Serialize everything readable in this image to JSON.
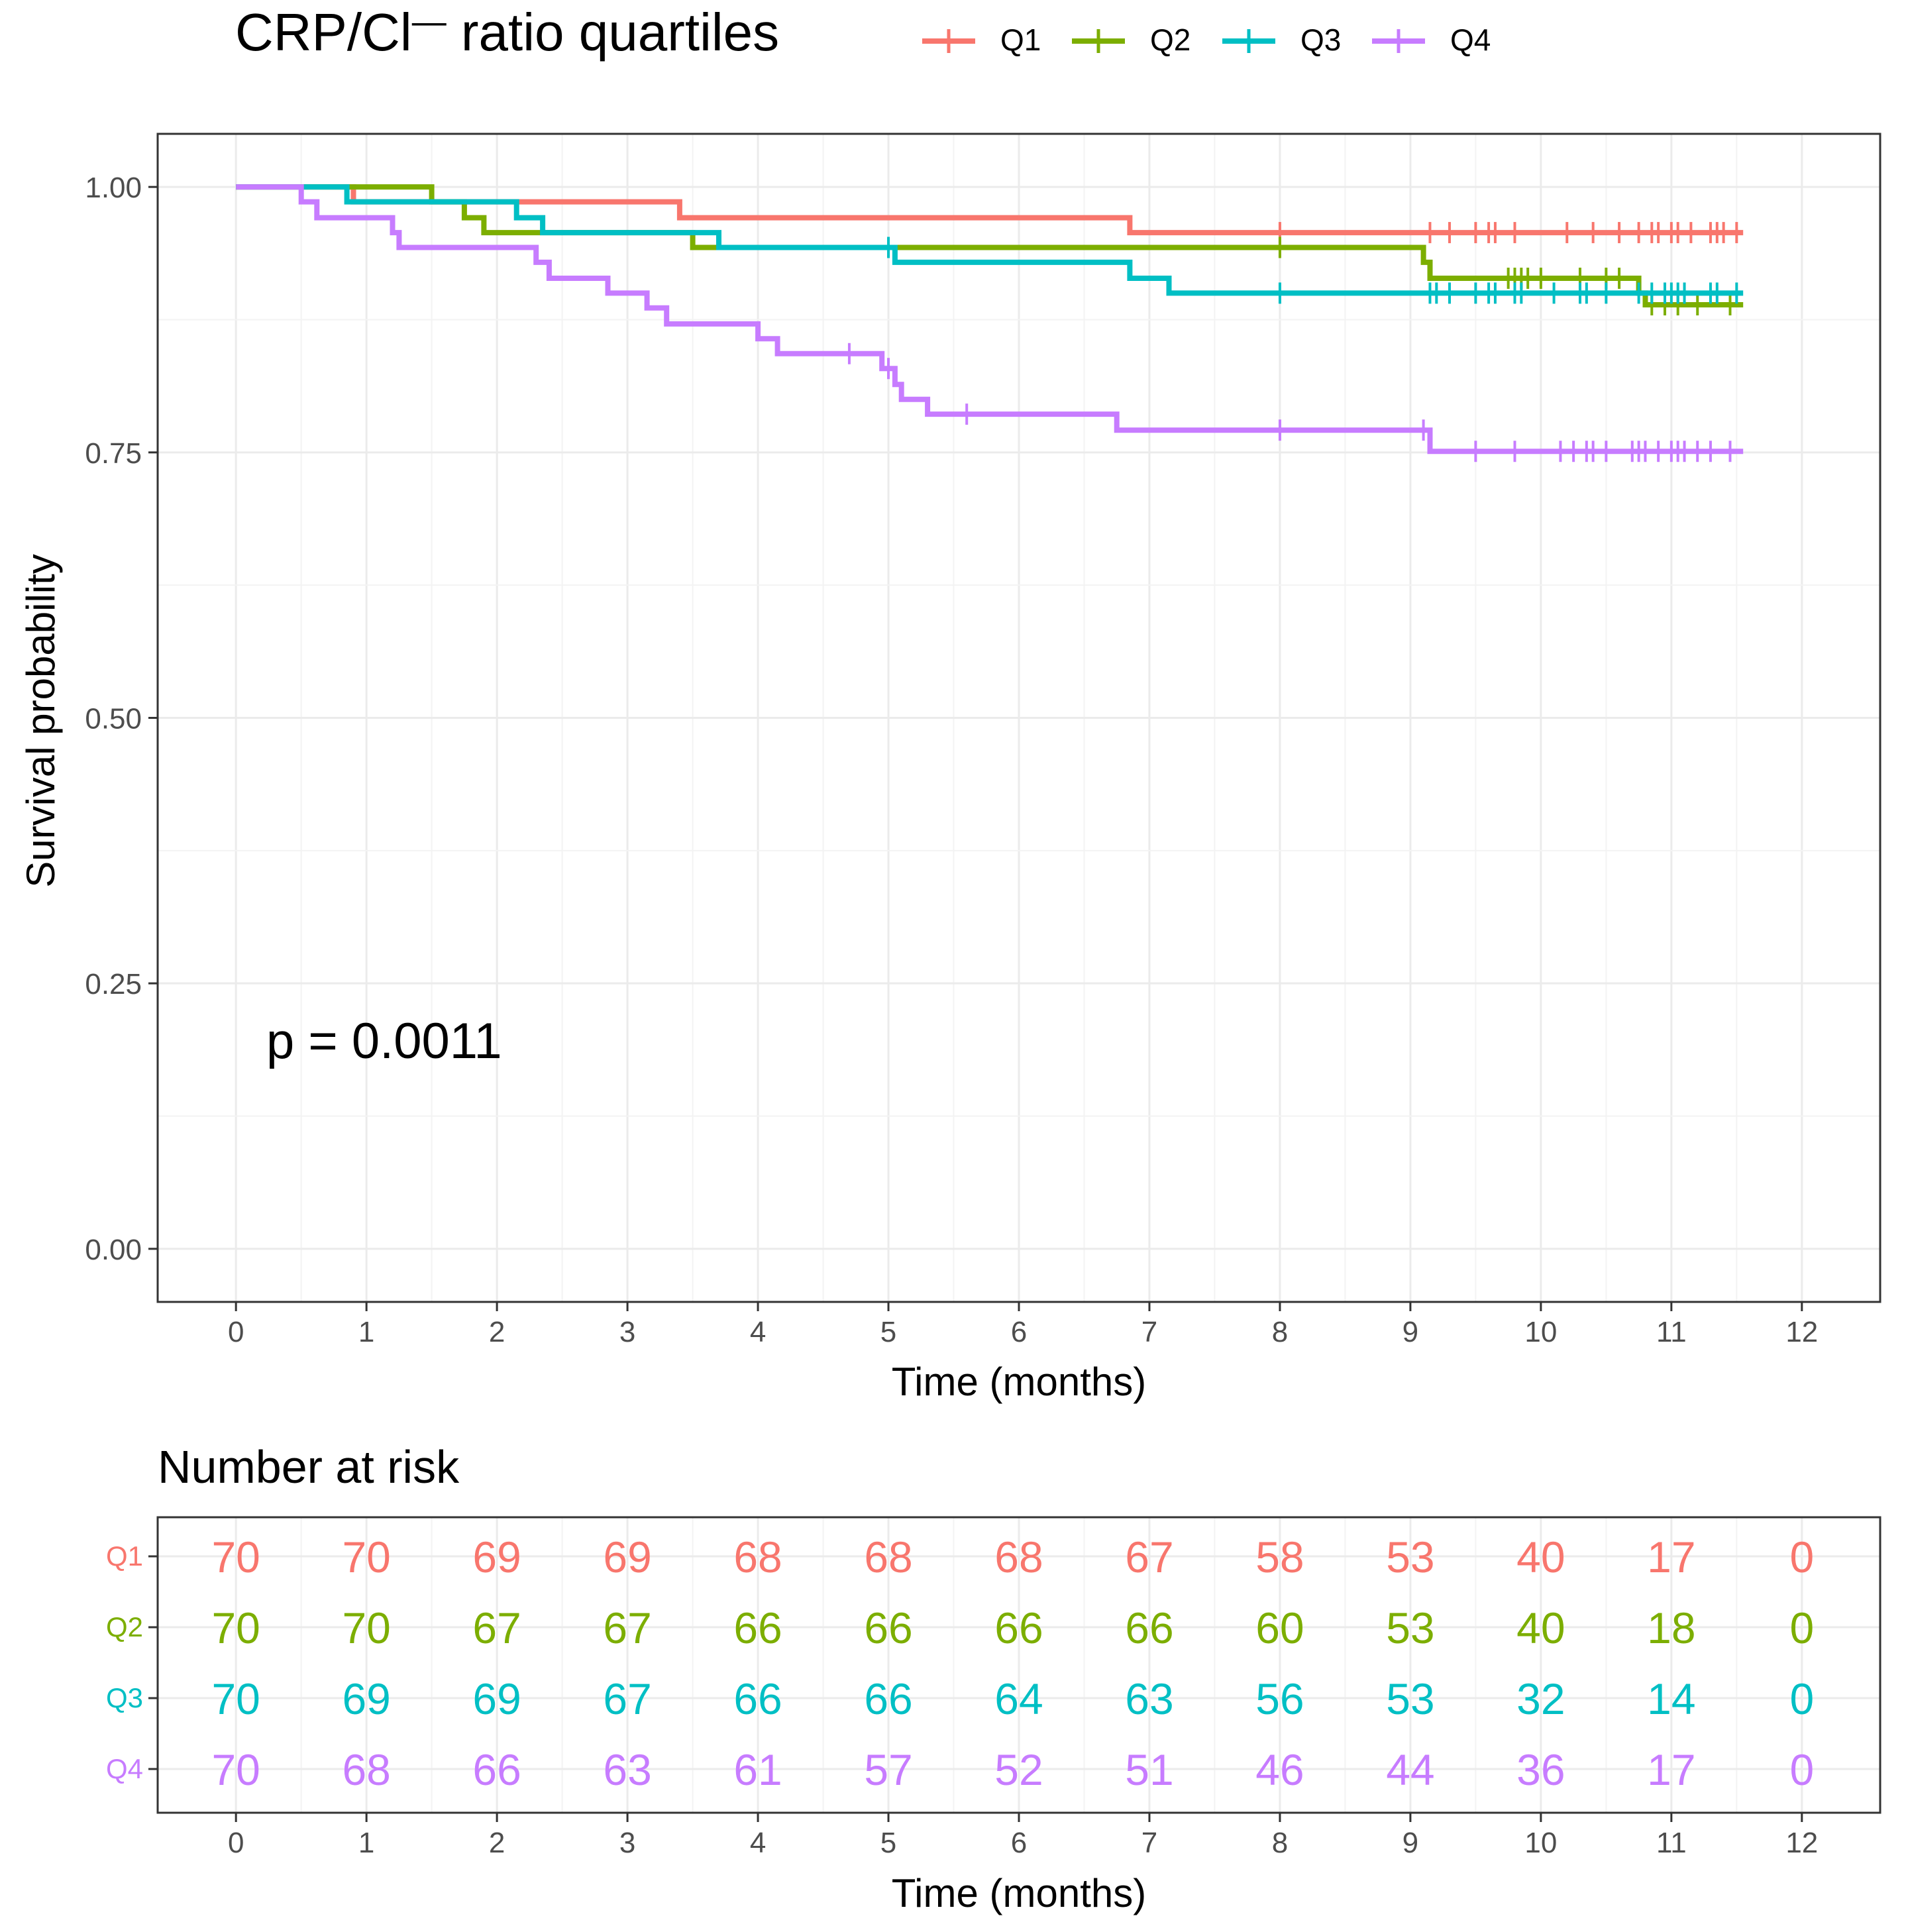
{
  "chart_data": [
    {
      "type": "line",
      "subtype": "kaplan-meier",
      "title": "",
      "xlabel": "Time (months)",
      "ylabel": "Survival probability",
      "xlim": [
        -0.6,
        12.6
      ],
      "ylim": [
        -0.05,
        1.05
      ],
      "x_ticks": [
        0,
        1,
        2,
        3,
        4,
        5,
        6,
        7,
        8,
        9,
        10,
        11,
        12
      ],
      "x_tick_labels": [
        "0",
        "1",
        "2",
        "3",
        "4",
        "5",
        "6",
        "7",
        "8",
        "9",
        "10",
        "11",
        "12"
      ],
      "y_ticks": [
        0,
        0.25,
        0.5,
        0.75,
        1
      ],
      "y_tick_labels": [
        "0.00",
        "0.25",
        "0.50",
        "0.75",
        "1.00"
      ],
      "grid": true,
      "legend": {
        "title_main": "CRP/Cl",
        "title_sup": "—",
        "title_rest": " ratio quartiles",
        "position": "top",
        "entries": [
          "Q1",
          "Q2",
          "Q3",
          "Q4"
        ]
      },
      "annotation": "p = 0.0011",
      "series": [
        {
          "name": "Q1",
          "color": "#F8766D",
          "steps": [
            [
              0,
              1.0
            ],
            [
              0.9,
              0.986
            ],
            [
              3.4,
              0.971
            ],
            [
              6.85,
              0.957
            ],
            [
              11.55,
              0.957
            ]
          ],
          "censor": [
            8.0,
            9.15,
            9.3,
            9.5,
            9.6,
            9.65,
            9.8,
            10.2,
            10.4,
            10.6,
            10.75,
            10.85,
            10.9,
            11.0,
            11.05,
            11.15,
            11.3,
            11.35,
            11.4,
            11.5
          ]
        },
        {
          "name": "Q2",
          "color": "#7CAE00",
          "steps": [
            [
              0,
              1.0
            ],
            [
              1.5,
              0.986
            ],
            [
              1.75,
              0.971
            ],
            [
              1.9,
              0.957
            ],
            [
              3.5,
              0.943
            ],
            [
              9.1,
              0.929
            ],
            [
              9.15,
              0.914
            ],
            [
              10.75,
              0.9
            ],
            [
              10.8,
              0.889
            ],
            [
              11.55,
              0.889
            ]
          ],
          "censor": [
            8.0,
            9.75,
            9.8,
            9.85,
            9.9,
            10.0,
            10.3,
            10.5,
            10.6,
            10.85,
            10.95,
            11.05,
            11.2,
            11.45
          ]
        },
        {
          "name": "Q3",
          "color": "#00BFC4",
          "steps": [
            [
              0,
              1.0
            ],
            [
              0.85,
              0.986
            ],
            [
              2.15,
              0.971
            ],
            [
              2.35,
              0.957
            ],
            [
              3.7,
              0.943
            ],
            [
              5.05,
              0.929
            ],
            [
              6.85,
              0.914
            ],
            [
              7.15,
              0.9
            ],
            [
              11.55,
              0.9
            ]
          ],
          "censor": [
            5.0,
            8.0,
            9.15,
            9.2,
            9.3,
            9.5,
            9.6,
            9.65,
            9.8,
            9.85,
            10.1,
            10.3,
            10.35,
            10.5,
            10.75,
            10.85,
            10.95,
            11.0,
            11.05,
            11.1,
            11.3,
            11.35,
            11.5
          ]
        },
        {
          "name": "Q4",
          "color": "#C77CFF",
          "steps": [
            [
              0,
              1.0
            ],
            [
              0.5,
              0.986
            ],
            [
              0.62,
              0.971
            ],
            [
              1.2,
              0.957
            ],
            [
              1.25,
              0.943
            ],
            [
              2.3,
              0.929
            ],
            [
              2.4,
              0.914
            ],
            [
              2.85,
              0.9
            ],
            [
              3.15,
              0.886
            ],
            [
              3.3,
              0.871
            ],
            [
              4.0,
              0.857
            ],
            [
              4.15,
              0.843
            ],
            [
              4.95,
              0.829
            ],
            [
              5.05,
              0.814
            ],
            [
              5.1,
              0.8
            ],
            [
              5.3,
              0.786
            ],
            [
              6.75,
              0.771
            ],
            [
              9.15,
              0.751
            ],
            [
              11.55,
              0.751
            ]
          ],
          "censor": [
            4.7,
            5.0,
            5.6,
            8.0,
            9.1,
            9.5,
            9.8,
            10.15,
            10.25,
            10.35,
            10.4,
            10.5,
            10.7,
            10.75,
            10.8,
            10.9,
            11.0,
            11.05,
            11.1,
            11.2,
            11.3,
            11.45
          ]
        }
      ]
    },
    {
      "type": "table",
      "title": "Number at risk",
      "xlabel": "Time (months)",
      "x_ticks": [
        0,
        1,
        2,
        3,
        4,
        5,
        6,
        7,
        8,
        9,
        10,
        11,
        12
      ],
      "x_tick_labels": [
        "0",
        "1",
        "2",
        "3",
        "4",
        "5",
        "6",
        "7",
        "8",
        "9",
        "10",
        "11",
        "12"
      ],
      "rows": [
        {
          "name": "Q1",
          "color": "#F8766D",
          "values": [
            "70",
            "70",
            "69",
            "69",
            "68",
            "68",
            "68",
            "67",
            "58",
            "53",
            "40",
            "17",
            "0"
          ]
        },
        {
          "name": "Q2",
          "color": "#7CAE00",
          "values": [
            "70",
            "70",
            "67",
            "67",
            "66",
            "66",
            "66",
            "66",
            "60",
            "53",
            "40",
            "18",
            "0"
          ]
        },
        {
          "name": "Q3",
          "color": "#00BFC4",
          "values": [
            "70",
            "69",
            "69",
            "67",
            "66",
            "66",
            "64",
            "63",
            "56",
            "53",
            "32",
            "14",
            "0"
          ]
        },
        {
          "name": "Q4",
          "color": "#C77CFF",
          "values": [
            "70",
            "68",
            "66",
            "63",
            "61",
            "57",
            "52",
            "51",
            "46",
            "44",
            "36",
            "17",
            "0"
          ]
        }
      ]
    }
  ]
}
